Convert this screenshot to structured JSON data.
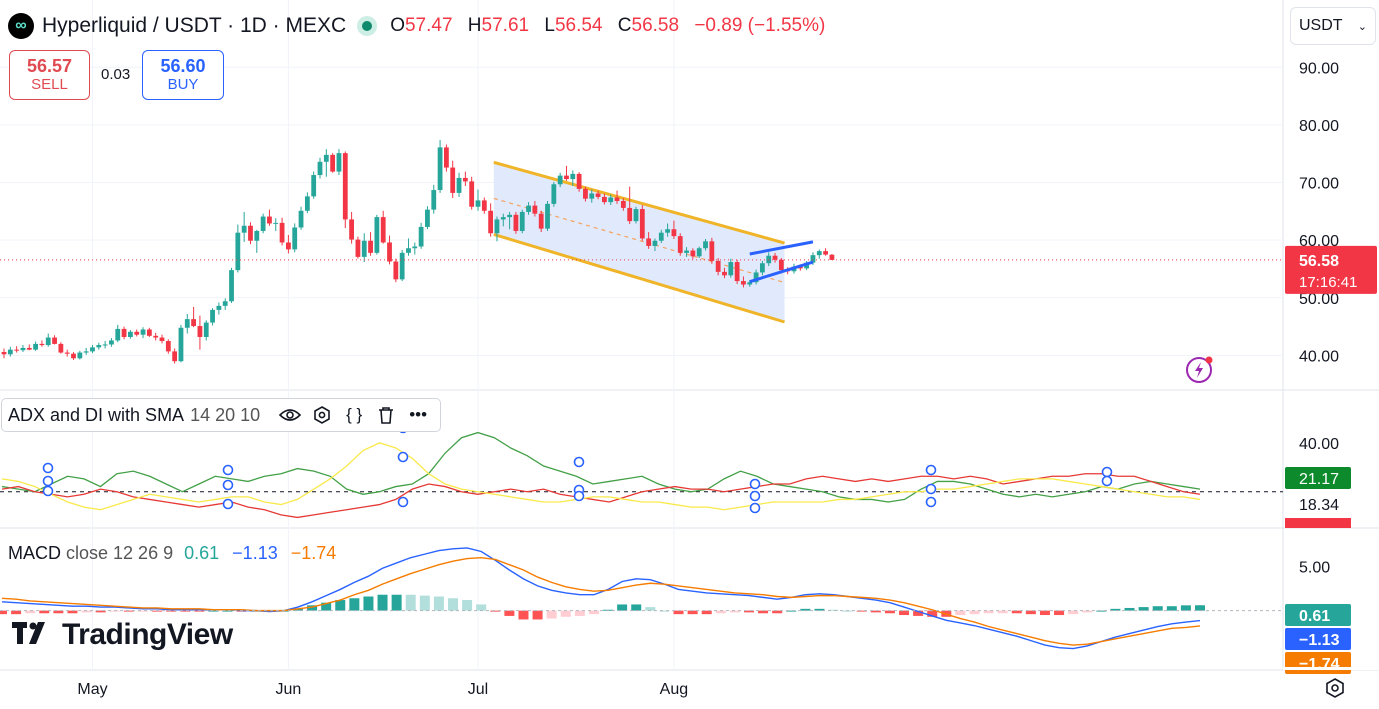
{
  "header": {
    "symbol": "Hyperliquid / USDT · 1D · MEXC",
    "o_label": "O",
    "o_value": "57.47",
    "h_label": "H",
    "h_value": "57.61",
    "l_label": "L",
    "l_value": "56.54",
    "c_label": "C",
    "c_value": "56.58",
    "change": "−0.89 (−1.55%)"
  },
  "trade": {
    "sell_price": "56.57",
    "sell_label": "SELL",
    "spread": "0.03",
    "buy_price": "56.60",
    "buy_label": "BUY"
  },
  "currency": {
    "label": "USDT"
  },
  "brand": {
    "name": "TradingView"
  },
  "colors": {
    "up": "#26a69a",
    "down": "#f23645",
    "channel": "#f0b429",
    "channel_fill": "#dce6fd",
    "flag": "#2962ff"
  },
  "chart_data": [
    {
      "type": "candlestick",
      "title": "Hyperliquid / USDT · 1D · MEXC",
      "ylim": [
        34,
        93
      ],
      "yticks": [
        "90.00",
        "80.00",
        "70.00",
        "60.00",
        "50.00",
        "40.00"
      ],
      "xticks": [
        "May",
        "Jun",
        "Jul",
        "Aug"
      ],
      "x_start": "2025-04-17",
      "last_price": "56.58",
      "countdown": "17:16:41",
      "candles": [
        [
          40.6,
          41.2,
          39.5,
          40.2
        ],
        [
          40.2,
          41.5,
          39.8,
          41.0
        ],
        [
          41.0,
          41.6,
          40.5,
          40.9
        ],
        [
          40.9,
          41.8,
          40.6,
          41.3
        ],
        [
          41.3,
          41.9,
          40.9,
          41.0
        ],
        [
          41.0,
          42.4,
          40.8,
          42.0
        ],
        [
          42.0,
          42.6,
          41.5,
          41.8
        ],
        [
          41.8,
          43.8,
          41.5,
          43.1
        ],
        [
          43.1,
          43.5,
          41.9,
          42.0
        ],
        [
          42.0,
          42.3,
          40.3,
          40.5
        ],
        [
          40.5,
          41.0,
          39.8,
          40.3
        ],
        [
          40.3,
          40.6,
          39.2,
          39.5
        ],
        [
          39.5,
          40.8,
          39.3,
          40.5
        ],
        [
          40.5,
          41.3,
          40.1,
          40.7
        ],
        [
          40.7,
          41.8,
          40.4,
          41.4
        ],
        [
          41.4,
          42.2,
          41.0,
          41.8
        ],
        [
          41.8,
          42.5,
          41.2,
          41.9
        ],
        [
          41.9,
          43.0,
          41.5,
          42.6
        ],
        [
          42.6,
          45.3,
          42.3,
          44.6
        ],
        [
          44.6,
          45.0,
          42.8,
          43.2
        ],
        [
          43.2,
          44.4,
          42.9,
          44.1
        ],
        [
          44.1,
          44.5,
          43.3,
          43.6
        ],
        [
          43.6,
          44.9,
          43.0,
          44.5
        ],
        [
          44.5,
          44.8,
          43.2,
          43.4
        ],
        [
          43.4,
          43.9,
          42.6,
          43.1
        ],
        [
          43.1,
          43.6,
          42.1,
          42.5
        ],
        [
          42.5,
          42.8,
          40.3,
          40.7
        ],
        [
          40.7,
          41.2,
          38.6,
          39.0
        ],
        [
          39.0,
          45.3,
          38.8,
          44.8
        ],
        [
          44.8,
          47.2,
          43.8,
          46.3
        ],
        [
          46.3,
          48.4,
          44.9,
          45.1
        ],
        [
          45.1,
          46.9,
          41.0,
          43.2
        ],
        [
          43.2,
          46.1,
          42.6,
          45.7
        ],
        [
          45.7,
          48.2,
          45.2,
          47.9
        ],
        [
          47.9,
          49.2,
          47.1,
          48.6
        ],
        [
          48.6,
          49.9,
          47.9,
          49.4
        ],
        [
          49.4,
          55.2,
          49.1,
          54.8
        ],
        [
          54.8,
          62.7,
          54.4,
          61.3
        ],
        [
          61.3,
          64.9,
          59.7,
          62.5
        ],
        [
          62.5,
          63.1,
          59.3,
          59.9
        ],
        [
          59.9,
          61.8,
          57.8,
          61.6
        ],
        [
          61.6,
          64.6,
          61.2,
          64.1
        ],
        [
          64.1,
          65.3,
          62.5,
          62.9
        ],
        [
          62.9,
          63.8,
          61.6,
          63.0
        ],
        [
          63.0,
          63.9,
          59.1,
          59.6
        ],
        [
          59.6,
          60.9,
          57.7,
          58.4
        ],
        [
          58.4,
          62.9,
          57.9,
          62.2
        ],
        [
          62.2,
          65.8,
          61.8,
          65.1
        ],
        [
          65.1,
          68.3,
          64.7,
          67.6
        ],
        [
          67.6,
          71.9,
          67.2,
          71.3
        ],
        [
          71.3,
          74.3,
          70.7,
          73.6
        ],
        [
          73.6,
          75.8,
          71.0,
          74.8
        ],
        [
          74.8,
          75.1,
          71.7,
          71.9
        ],
        [
          71.9,
          75.8,
          71.3,
          75.1
        ],
        [
          75.1,
          75.4,
          62.1,
          63.6
        ],
        [
          63.6,
          64.9,
          59.4,
          60.1
        ],
        [
          60.1,
          60.6,
          56.8,
          57.1
        ],
        [
          57.1,
          61.2,
          56.2,
          59.9
        ],
        [
          59.9,
          61.4,
          57.3,
          57.8
        ],
        [
          57.8,
          64.4,
          57.5,
          64.0
        ],
        [
          64.0,
          65.1,
          59.4,
          59.6
        ],
        [
          59.6,
          60.8,
          55.8,
          56.3
        ],
        [
          56.3,
          56.8,
          52.7,
          53.2
        ],
        [
          53.2,
          58.3,
          52.9,
          57.8
        ],
        [
          57.8,
          60.3,
          57.3,
          58.6
        ],
        [
          58.6,
          59.6,
          57.5,
          58.9
        ],
        [
          58.9,
          63.0,
          58.5,
          62.3
        ],
        [
          62.3,
          65.9,
          61.9,
          65.3
        ],
        [
          65.3,
          69.6,
          64.6,
          68.7
        ],
        [
          68.7,
          77.4,
          68.2,
          76.1
        ],
        [
          76.1,
          76.6,
          71.9,
          72.6
        ],
        [
          72.6,
          73.8,
          67.3,
          68.2
        ],
        [
          68.2,
          71.7,
          67.5,
          70.8
        ],
        [
          70.8,
          71.9,
          69.4,
          70.2
        ],
        [
          70.2,
          71.0,
          65.3,
          65.8
        ],
        [
          65.8,
          68.8,
          65.1,
          66.9
        ],
        [
          66.9,
          67.4,
          64.6,
          65.1
        ],
        [
          65.1,
          66.4,
          60.6,
          61.2
        ],
        [
          61.2,
          64.1,
          59.8,
          63.6
        ],
        [
          63.6,
          64.6,
          62.4,
          64.0
        ],
        [
          64.0,
          64.9,
          61.9,
          64.4
        ],
        [
          64.4,
          64.9,
          61.1,
          61.6
        ],
        [
          61.6,
          65.3,
          61.2,
          64.9
        ],
        [
          64.9,
          66.6,
          64.4,
          66.0
        ],
        [
          66.0,
          66.8,
          64.1,
          64.6
        ],
        [
          64.6,
          65.1,
          61.4,
          62.0
        ],
        [
          62.0,
          66.8,
          61.6,
          66.3
        ],
        [
          66.3,
          70.1,
          65.8,
          69.7
        ],
        [
          69.7,
          71.7,
          69.2,
          71.2
        ],
        [
          71.2,
          72.9,
          70.3,
          70.6
        ],
        [
          70.6,
          72.1,
          69.4,
          71.5
        ],
        [
          71.5,
          71.8,
          68.4,
          68.9
        ],
        [
          68.9,
          69.3,
          66.7,
          67.2
        ],
        [
          67.2,
          68.8,
          66.5,
          68.1
        ],
        [
          68.1,
          68.6,
          67.1,
          67.5
        ],
        [
          67.5,
          68.1,
          66.2,
          66.6
        ],
        [
          66.6,
          67.9,
          66.1,
          67.4
        ],
        [
          67.4,
          68.6,
          66.3,
          66.8
        ],
        [
          66.8,
          67.3,
          65.1,
          65.6
        ],
        [
          65.6,
          69.3,
          62.8,
          63.3
        ],
        [
          63.3,
          65.8,
          62.9,
          65.4
        ],
        [
          65.4,
          66.1,
          59.9,
          60.3
        ],
        [
          60.3,
          61.4,
          58.5,
          59.0
        ],
        [
          59.0,
          60.3,
          58.1,
          59.9
        ],
        [
          59.9,
          61.8,
          59.5,
          61.3
        ],
        [
          61.3,
          62.9,
          60.6,
          61.9
        ],
        [
          61.9,
          63.4,
          60.2,
          60.7
        ],
        [
          60.7,
          61.2,
          57.3,
          57.8
        ],
        [
          57.8,
          58.8,
          57.1,
          58.2
        ],
        [
          58.2,
          58.6,
          56.7,
          57.2
        ],
        [
          57.2,
          58.9,
          56.9,
          58.6
        ],
        [
          58.6,
          60.2,
          58.2,
          59.8
        ],
        [
          59.8,
          60.4,
          55.9,
          56.4
        ],
        [
          56.4,
          56.9,
          53.9,
          54.5
        ],
        [
          54.5,
          55.2,
          53.4,
          53.9
        ],
        [
          53.9,
          56.8,
          53.5,
          56.2
        ],
        [
          56.2,
          56.6,
          52.4,
          52.9
        ],
        [
          52.9,
          53.7,
          51.8,
          52.3
        ],
        [
          52.3,
          53.1,
          51.9,
          52.7
        ],
        [
          52.7,
          54.9,
          52.3,
          54.4
        ],
        [
          54.4,
          56.4,
          53.9,
          56.0
        ],
        [
          56.0,
          57.9,
          55.5,
          57.3
        ],
        [
          57.3,
          57.8,
          56.1,
          56.6
        ],
        [
          56.6,
          56.9,
          54.2,
          54.8
        ],
        [
          54.8,
          55.3,
          54.1,
          54.6
        ],
        [
          54.6,
          55.9,
          54.2,
          55.4
        ],
        [
          55.4,
          55.8,
          54.7,
          55.1
        ],
        [
          55.1,
          56.4,
          54.8,
          56.1
        ],
        [
          56.1,
          57.9,
          55.7,
          57.4
        ],
        [
          57.4,
          58.4,
          56.8,
          58.1
        ],
        [
          58.1,
          58.6,
          57.3,
          57.5
        ],
        [
          57.47,
          57.61,
          56.54,
          56.58
        ]
      ]
    },
    {
      "type": "line",
      "title": "ADX and DI with SMA",
      "params": "14 20 10",
      "yticks": [
        "40.00"
      ],
      "ylim": [
        10,
        45
      ],
      "last_values": {
        "plus_di": "21.17",
        "minus_di": "18.34"
      },
      "series": [
        {
          "color": "#43a047",
          "values": [
            23,
            22,
            21,
            24,
            27,
            26,
            23,
            28,
            29,
            27,
            24,
            21,
            24,
            27,
            26,
            25,
            27,
            28,
            30,
            29,
            27,
            22,
            20,
            21,
            23,
            24,
            28,
            36,
            42,
            44,
            42,
            38,
            35,
            31,
            29,
            27,
            24,
            25,
            26,
            27,
            24,
            22,
            21,
            22,
            26,
            29,
            27,
            24,
            23,
            22,
            21,
            19,
            18,
            18,
            17,
            18,
            22,
            25,
            25,
            24,
            22,
            20,
            19,
            20,
            19,
            20,
            21,
            23,
            22,
            24,
            25,
            24,
            23,
            22
          ]
        },
        {
          "color": "#e53935",
          "values": [
            22,
            23,
            21,
            20,
            19,
            20,
            22,
            21,
            19,
            18,
            17,
            16,
            15,
            16,
            17,
            15,
            14,
            12,
            11,
            12,
            13,
            14,
            15,
            16,
            18,
            22,
            24,
            23,
            21,
            20,
            21,
            22,
            21,
            22,
            20,
            19,
            18,
            17,
            19,
            21,
            22,
            23,
            22,
            22,
            21,
            22,
            23,
            24,
            24,
            26,
            27,
            26,
            25,
            26,
            25,
            26,
            27,
            27,
            26,
            27,
            26,
            24,
            25,
            26,
            27,
            27,
            28,
            28,
            27,
            27,
            25,
            23,
            21,
            20
          ]
        },
        {
          "color": "#f9e94a",
          "values": [
            26,
            25,
            23,
            20,
            17,
            15,
            14,
            16,
            18,
            20,
            19,
            18,
            17,
            18,
            19,
            19,
            17,
            16,
            18,
            22,
            26,
            31,
            37,
            40,
            38,
            34,
            28,
            24,
            22,
            21,
            20,
            19,
            18,
            17,
            17,
            18,
            19,
            19,
            18,
            17,
            17,
            16,
            15,
            15,
            14,
            15,
            16,
            17,
            17,
            17,
            17,
            18,
            18,
            19,
            20,
            21,
            21,
            22,
            22,
            23,
            24,
            25,
            26,
            26,
            26,
            25,
            24,
            23,
            22,
            21,
            20,
            19,
            19,
            18
          ]
        }
      ],
      "ref_line": 21
    },
    {
      "type": "bar+line",
      "title": "MACD",
      "params": "close 12 26 9",
      "values_label": {
        "histogram": "0.61",
        "macd": "−1.13",
        "signal": "−1.74"
      },
      "yticks": [
        "5.00"
      ],
      "ylim": [
        -6.5,
        8
      ],
      "series": [
        {
          "name": "macd",
          "color": "#2962ff",
          "values": [
            1.0,
            0.9,
            0.8,
            0.7,
            0.6,
            0.5,
            0.5,
            0.4,
            0.4,
            0.3,
            0.2,
            0.2,
            0.1,
            0.1,
            0.1,
            0.1,
            0.1,
            0.0,
            0.0,
            -0.1,
            0.0,
            0.4,
            1.0,
            1.7,
            2.4,
            3.2,
            3.9,
            4.8,
            5.4,
            6.0,
            6.4,
            6.8,
            7.0,
            7.1,
            6.7,
            5.7,
            4.6,
            3.6,
            2.8,
            2.3,
            2.0,
            1.8,
            1.8,
            2.4,
            3.3,
            3.6,
            3.5,
            3.0,
            2.4,
            2.2,
            2.0,
            1.9,
            1.8,
            1.7,
            1.5,
            1.3,
            1.5,
            1.8,
            1.9,
            1.8,
            1.6,
            1.4,
            1.2,
            0.9,
            0.4,
            -0.1,
            -0.6,
            -1.1,
            -1.4,
            -1.7,
            -2.1,
            -2.5,
            -2.9,
            -3.4,
            -3.9,
            -4.2,
            -4.3,
            -4.0,
            -3.5,
            -3.0,
            -2.6,
            -2.2,
            -1.8,
            -1.5,
            -1.3,
            -1.13
          ]
        },
        {
          "name": "signal",
          "color": "#f57c00",
          "values": [
            1.4,
            1.3,
            1.1,
            1.0,
            0.9,
            0.8,
            0.7,
            0.6,
            0.5,
            0.4,
            0.3,
            0.3,
            0.2,
            0.2,
            0.2,
            0.1,
            0.1,
            0.1,
            0.0,
            0.0,
            0.0,
            0.2,
            0.4,
            0.8,
            1.2,
            1.8,
            2.3,
            3.0,
            3.6,
            4.2,
            4.7,
            5.2,
            5.6,
            5.9,
            6.0,
            5.8,
            5.2,
            4.6,
            3.8,
            3.2,
            2.7,
            2.4,
            2.2,
            2.3,
            2.6,
            2.9,
            3.1,
            3.0,
            2.8,
            2.6,
            2.4,
            2.2,
            2.0,
            1.9,
            1.8,
            1.6,
            1.5,
            1.6,
            1.7,
            1.7,
            1.6,
            1.5,
            1.4,
            1.2,
            0.9,
            0.5,
            0.1,
            -0.4,
            -0.9,
            -1.3,
            -1.8,
            -2.2,
            -2.6,
            -3.0,
            -3.4,
            -3.7,
            -3.9,
            -3.8,
            -3.5,
            -3.2,
            -2.9,
            -2.6,
            -2.3,
            -2.0,
            -1.9,
            -1.74
          ]
        }
      ]
    }
  ]
}
